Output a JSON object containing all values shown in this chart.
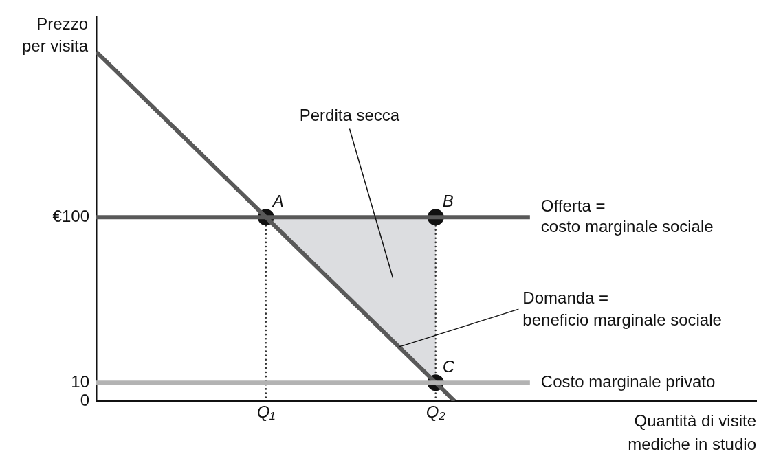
{
  "chart_data": {
    "type": "line",
    "xlabel": "Quantità di visite\nmediche in studio",
    "ylabel": "Prezzo\nper visita",
    "categories": [
      null,
      null,
      null,
      null,
      null,
      null,
      null,
      null,
      null,
      "Q₁",
      null,
      null,
      null,
      null,
      null,
      null,
      null,
      null,
      "Q₂",
      null,
      null,
      null,
      null,
      null,
      null,
      null,
      null,
      null,
      null,
      null,
      null,
      null,
      null,
      null,
      null,
      null
    ],
    "ylim": [
      0,
      209
    ],
    "yticks": [
      0,
      10,
      {
        "value": 100,
        "label": "€100"
      }
    ],
    "grid": false,
    "legend": false,
    "series": [
      {
        "name": "Offerta =\ncosto marginale sociale",
        "color": "#595959",
        "line_style": "solid",
        "marker": "none",
        "values": [
          100,
          100,
          100,
          100,
          100,
          100,
          100,
          100,
          100,
          100,
          100,
          100,
          100,
          100,
          100,
          100,
          100,
          100,
          100,
          100,
          100,
          100,
          100,
          100,
          null,
          null,
          null,
          null,
          null,
          null,
          null,
          null,
          null,
          null,
          null,
          null
        ]
      },
      {
        "name": "Costo marginale privato",
        "color": "#b3b3b3",
        "line_style": "solid",
        "marker": "none",
        "values": [
          10,
          10,
          10,
          10,
          10,
          10,
          10,
          10,
          10,
          10,
          10,
          10,
          10,
          10,
          10,
          10,
          10,
          10,
          10,
          10,
          10,
          10,
          10,
          10,
          null,
          null,
          null,
          null,
          null,
          null,
          null,
          null,
          null,
          null,
          null,
          null
        ]
      },
      {
        "name": "Domanda =\nbeneficio marginale sociale",
        "color": "#595959",
        "line_style": "solid",
        "marker": "none",
        "values": [
          190,
          180,
          170,
          160,
          150,
          140,
          130,
          120,
          110,
          100,
          90,
          80,
          70,
          60,
          50,
          40,
          30,
          20,
          10,
          0,
          null,
          null,
          null,
          null,
          null,
          null,
          null,
          null,
          null,
          null,
          null,
          null,
          null,
          null,
          null,
          null
        ]
      },
      {
        "type": "scatter",
        "color": "#111111",
        "marker": "circle",
        "x": [
          "Q₁",
          "Q₂",
          "Q₂"
        ],
        "values": [
          100,
          100,
          10
        ]
      }
    ],
    "annotations": [
      "Perdita secca",
      {
        "text": "A",
        "x": "Q₁",
        "y": 100
      },
      {
        "text": "B",
        "x": "Q₂",
        "y": 100
      },
      {
        "text": "C",
        "x": "Q₂",
        "y": 10
      }
    ]
  }
}
